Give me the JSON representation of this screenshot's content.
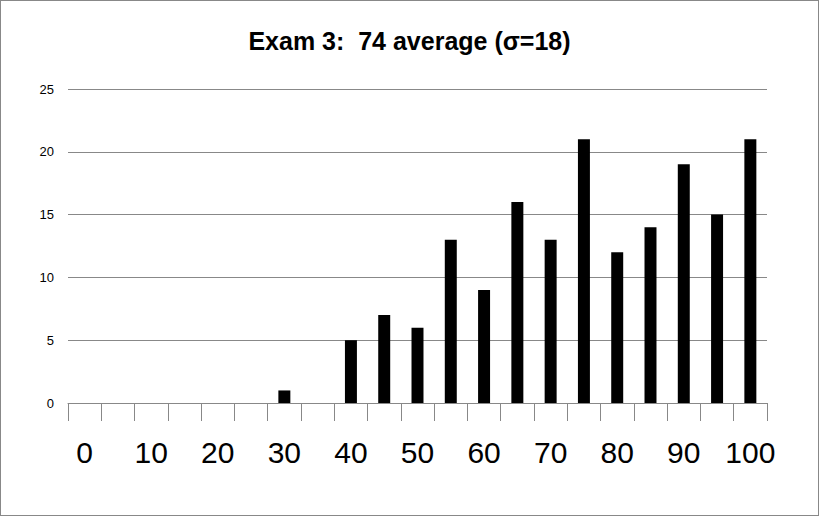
{
  "chart_data": {
    "type": "bar",
    "title": "Exam 3:  74 average (σ=18)",
    "categories": [
      "0",
      null,
      "10",
      null,
      "20",
      null,
      "30",
      null,
      "40",
      null,
      "50",
      null,
      "60",
      null,
      "70",
      null,
      "80",
      null,
      "90",
      null,
      "100"
    ],
    "values": [
      0,
      0,
      0,
      0,
      0,
      0,
      1,
      0,
      5,
      7,
      6,
      13,
      9,
      16,
      13,
      21,
      12,
      14,
      19,
      15,
      21
    ],
    "color": "#000000",
    "ylim": [
      0,
      25
    ],
    "yticks": [
      0,
      5,
      10,
      15,
      20,
      25
    ],
    "grid": true
  }
}
